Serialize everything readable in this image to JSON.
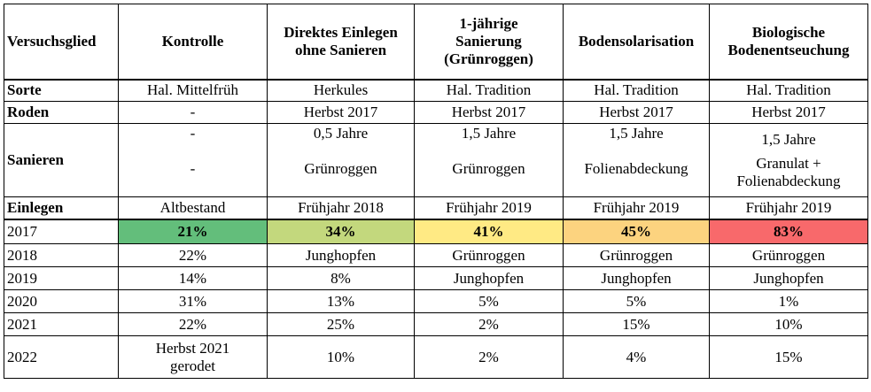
{
  "header": {
    "versuchsglied": "Versuchsglied",
    "kontrolle": "Kontrolle",
    "direktes_line1": "Direktes Einlegen",
    "direktes_line2": "ohne Sanieren",
    "sanierung_line1": "1-jährige",
    "sanierung_line2": "Sanierung",
    "sanierung_line3": "(Grünroggen)",
    "solarisation": "Bodensolarisation",
    "bio_line1": "Biologische",
    "bio_line2": "Bodenentseuchung"
  },
  "meta_rows": {
    "sorte": {
      "label": "Sorte",
      "values": [
        "Hal. Mittelfrüh",
        "Herkules",
        "Hal. Tradition",
        "Hal. Tradition",
        "Hal. Tradition"
      ]
    },
    "roden": {
      "label": "Roden",
      "values": [
        "-",
        "Herbst 2017",
        "Herbst 2017",
        "Herbst 2017",
        "Herbst 2017"
      ]
    },
    "sanieren": {
      "label": "Sanieren",
      "kontrolle_a": "-",
      "kontrolle_b": "-",
      "direktes_a": "0,5 Jahre",
      "direktes_b": "Grünroggen",
      "sanierung_a": "1,5 Jahre",
      "sanierung_b": "Grünroggen",
      "solar_a": "1,5 Jahre",
      "solar_b": "Folienabdeckung",
      "bio_a": "1,5 Jahre",
      "bio_b": "Granulat +",
      "bio_c": "Folienabdeckung"
    },
    "einlegen": {
      "label": "Einlegen",
      "values": [
        "Altbestand",
        "Frühjahr 2018",
        "Frühjahr 2019",
        "Frühjahr 2019",
        "Frühjahr 2019"
      ]
    }
  },
  "years": [
    {
      "year": "2017",
      "values": [
        "21%",
        "34%",
        "41%",
        "45%",
        "83%"
      ]
    },
    {
      "year": "2018",
      "values": [
        "22%",
        "Junghopfen",
        "Grünroggen",
        "Grünroggen",
        "Grünroggen"
      ]
    },
    {
      "year": "2019",
      "values": [
        "14%",
        "8%",
        "Junghopfen",
        "Junghopfen",
        "Junghopfen"
      ]
    },
    {
      "year": "2020",
      "values": [
        "31%",
        "13%",
        "5%",
        "5%",
        "1%"
      ]
    },
    {
      "year": "2021",
      "values": [
        "22%",
        "25%",
        "2%",
        "15%",
        "10%"
      ]
    },
    {
      "year": "2022",
      "values": [
        "",
        "10%",
        "2%",
        "4%",
        "15%"
      ]
    }
  ],
  "row_2022_kontrolle_line1": "Herbst 2021",
  "row_2022_kontrolle_line2": "gerodet",
  "colors": {
    "c1": "#63be7b",
    "c2": "#c3d87d",
    "c3": "#ffea84",
    "c4": "#fcd37f",
    "c5": "#f8696b"
  }
}
